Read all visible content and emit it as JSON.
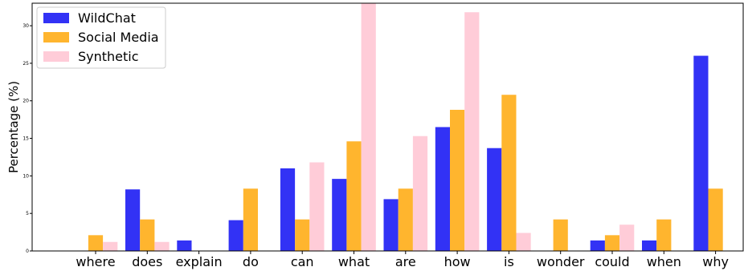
{
  "chart_data": {
    "type": "bar",
    "title": "",
    "xlabel": "",
    "ylabel": "Percentage (%)",
    "ylim": [
      0,
      33
    ],
    "yticks": [
      0,
      5,
      10,
      15,
      20,
      25,
      30
    ],
    "grid": false,
    "legend_position": "top-left",
    "categories": [
      "where",
      "does",
      "explain",
      "do",
      "can",
      "what",
      "are",
      "how",
      "is",
      "wonder",
      "could",
      "when",
      "why"
    ],
    "series": [
      {
        "name": "WildChat",
        "color": "#3232f5",
        "values": [
          0,
          8.2,
          1.4,
          4.1,
          11.0,
          9.6,
          6.9,
          16.5,
          13.7,
          0,
          1.4,
          1.4,
          26.0
        ]
      },
      {
        "name": "Social Media",
        "color": "#ffb52e",
        "values": [
          2.1,
          4.2,
          0,
          8.3,
          4.2,
          14.6,
          8.3,
          18.8,
          20.8,
          4.2,
          2.1,
          4.2,
          8.3
        ]
      },
      {
        "name": "Synthetic",
        "color": "#ffccd8",
        "values": [
          1.2,
          1.2,
          0,
          0,
          11.8,
          33.0,
          15.3,
          31.8,
          2.4,
          0,
          3.5,
          0,
          0
        ]
      }
    ]
  }
}
